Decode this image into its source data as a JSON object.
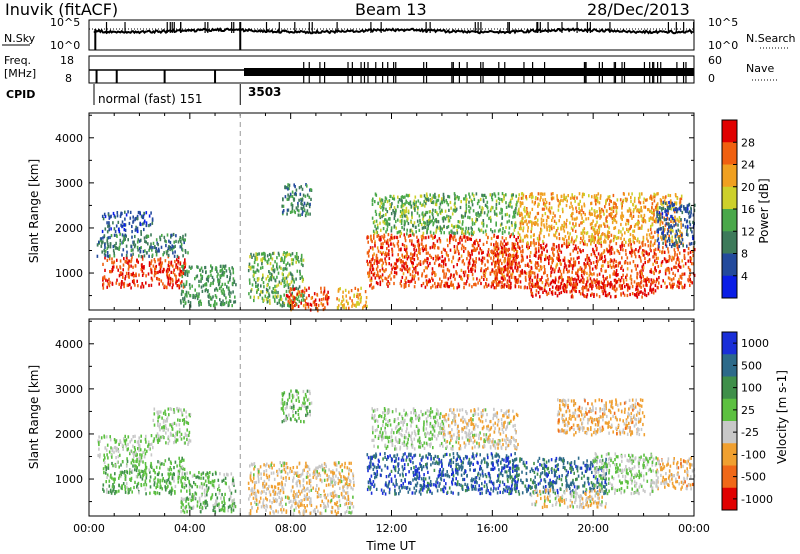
{
  "header": {
    "station": "Inuvik (fitACF)",
    "beam": "Beam 13",
    "date": "28/Dec/2013"
  },
  "noise_panel": {
    "left_label": "N.Sky",
    "left_ticks": [
      "10^5",
      "10^0"
    ],
    "right_label": "N.Search",
    "right_ticks": [
      "10^5",
      "10^0"
    ]
  },
  "freq_panel": {
    "left_label": "Freq.",
    "left_unit": "[MHz]",
    "left_ticks": [
      "18",
      "8"
    ],
    "right_label": "Nave",
    "right_ticks": [
      "60",
      "0"
    ]
  },
  "cpid_panel": {
    "label": "CPID",
    "modes": [
      {
        "name": "normal (fast) 151",
        "start_hour": 0
      },
      {
        "name": "3503",
        "start_hour": 6
      }
    ]
  },
  "colors": {
    "power": [
      "#0a1ee6",
      "#234a9c",
      "#3d7a5a",
      "#4aa84a",
      "#cdd02b",
      "#f0a020",
      "#f06010",
      "#e00000"
    ],
    "velocity": [
      "#1a2fd8",
      "#2d6a8a",
      "#3f8f4a",
      "#5cc040",
      "#c8c8c8",
      "#f0a030",
      "#f06818",
      "#e00000"
    ]
  },
  "chart_data": [
    {
      "type": "heatmap",
      "title": "",
      "ylabel": "Slant Range [km]",
      "xlabel": "",
      "x_range_hours": [
        0,
        24
      ],
      "ylim": [
        180,
        4550
      ],
      "y_ticks": [
        1000,
        2000,
        3000,
        4000
      ],
      "colorbar": {
        "label": "Power [dB]",
        "ticks": [
          "4",
          "8",
          "12",
          "16",
          "20",
          "24",
          "28"
        ],
        "range": [
          0,
          32
        ]
      },
      "blobs": [
        {
          "t0": 0.5,
          "t1": 3.8,
          "r0": 700,
          "r1": 1400,
          "value": 28
        },
        {
          "t0": 0.3,
          "t1": 3.9,
          "r0": 1400,
          "r1": 1900,
          "value": 10
        },
        {
          "t0": 0.5,
          "t1": 2.5,
          "r0": 1950,
          "r1": 2400,
          "value": 6
        },
        {
          "t0": 3.6,
          "t1": 5.8,
          "r0": 300,
          "r1": 1200,
          "value": 12
        },
        {
          "t0": 6.3,
          "t1": 8.5,
          "r0": 300,
          "r1": 1500,
          "value": 14
        },
        {
          "t0": 7.8,
          "t1": 9.5,
          "r0": 200,
          "r1": 700,
          "value": 27
        },
        {
          "t0": 7.6,
          "t1": 8.8,
          "r0": 2300,
          "r1": 3000,
          "value": 10
        },
        {
          "t0": 9.8,
          "t1": 11.0,
          "r0": 250,
          "r1": 700,
          "value": 22
        },
        {
          "t0": 11.0,
          "t1": 17.0,
          "r0": 700,
          "r1": 1900,
          "value": 27
        },
        {
          "t0": 11.2,
          "t1": 17.0,
          "r0": 1900,
          "r1": 2800,
          "value": 14
        },
        {
          "t0": 16.0,
          "t1": 24.0,
          "r0": 700,
          "r1": 1700,
          "value": 27
        },
        {
          "t0": 17.5,
          "t1": 22.5,
          "r0": 500,
          "r1": 900,
          "value": 29
        },
        {
          "t0": 17.0,
          "t1": 23.5,
          "r0": 1700,
          "r1": 2800,
          "value": 22
        },
        {
          "t0": 22.5,
          "t1": 24.0,
          "r0": 1600,
          "r1": 2600,
          "value": 7
        }
      ]
    },
    {
      "type": "heatmap",
      "title": "",
      "ylabel": "Slant Range [km]",
      "xlabel": "Time UT",
      "x_range_hours": [
        0,
        24
      ],
      "x_ticks": [
        "00:00",
        "04:00",
        "08:00",
        "12:00",
        "16:00",
        "20:00",
        "00:00"
      ],
      "ylim": [
        180,
        4550
      ],
      "y_ticks": [
        1000,
        2000,
        3000,
        4000
      ],
      "colorbar": {
        "label": "Velocity [m s-1]",
        "ticks": [
          "1000",
          "500",
          "100",
          "25",
          "-25",
          "-100",
          "-500",
          "-1000"
        ],
        "range": [
          -1000,
          1000
        ]
      },
      "blobs": [
        {
          "t0": 0.5,
          "t1": 3.8,
          "r0": 700,
          "r1": 1500,
          "value": 180
        },
        {
          "t0": 0.3,
          "t1": 2.5,
          "r0": 1500,
          "r1": 2000,
          "value": 0
        },
        {
          "t0": 2.5,
          "t1": 4.0,
          "r0": 1800,
          "r1": 2600,
          "value": 0
        },
        {
          "t0": 3.6,
          "t1": 5.8,
          "r0": 300,
          "r1": 1200,
          "value": 120
        },
        {
          "t0": 6.3,
          "t1": 10.5,
          "r0": 250,
          "r1": 1400,
          "value": -200
        },
        {
          "t0": 7.6,
          "t1": 8.8,
          "r0": 2300,
          "r1": 3000,
          "value": 100
        },
        {
          "t0": 11.0,
          "t1": 17.0,
          "r0": 700,
          "r1": 1600,
          "value": 700
        },
        {
          "t0": 11.2,
          "t1": 14.0,
          "r0": 1700,
          "r1": 2600,
          "value": 0
        },
        {
          "t0": 14.0,
          "t1": 17.0,
          "r0": 1700,
          "r1": 2600,
          "value": -200
        },
        {
          "t0": 16.5,
          "t1": 20.5,
          "r0": 700,
          "r1": 1500,
          "value": 600
        },
        {
          "t0": 20.0,
          "t1": 22.5,
          "r0": 700,
          "r1": 1600,
          "value": 0
        },
        {
          "t0": 22.5,
          "t1": 24.0,
          "r0": 800,
          "r1": 1500,
          "value": -300
        },
        {
          "t0": 18.5,
          "t1": 22.0,
          "r0": 2000,
          "r1": 2800,
          "value": -300
        },
        {
          "t0": 17.5,
          "t1": 20.5,
          "r0": 400,
          "r1": 800,
          "value": -200
        }
      ]
    }
  ]
}
